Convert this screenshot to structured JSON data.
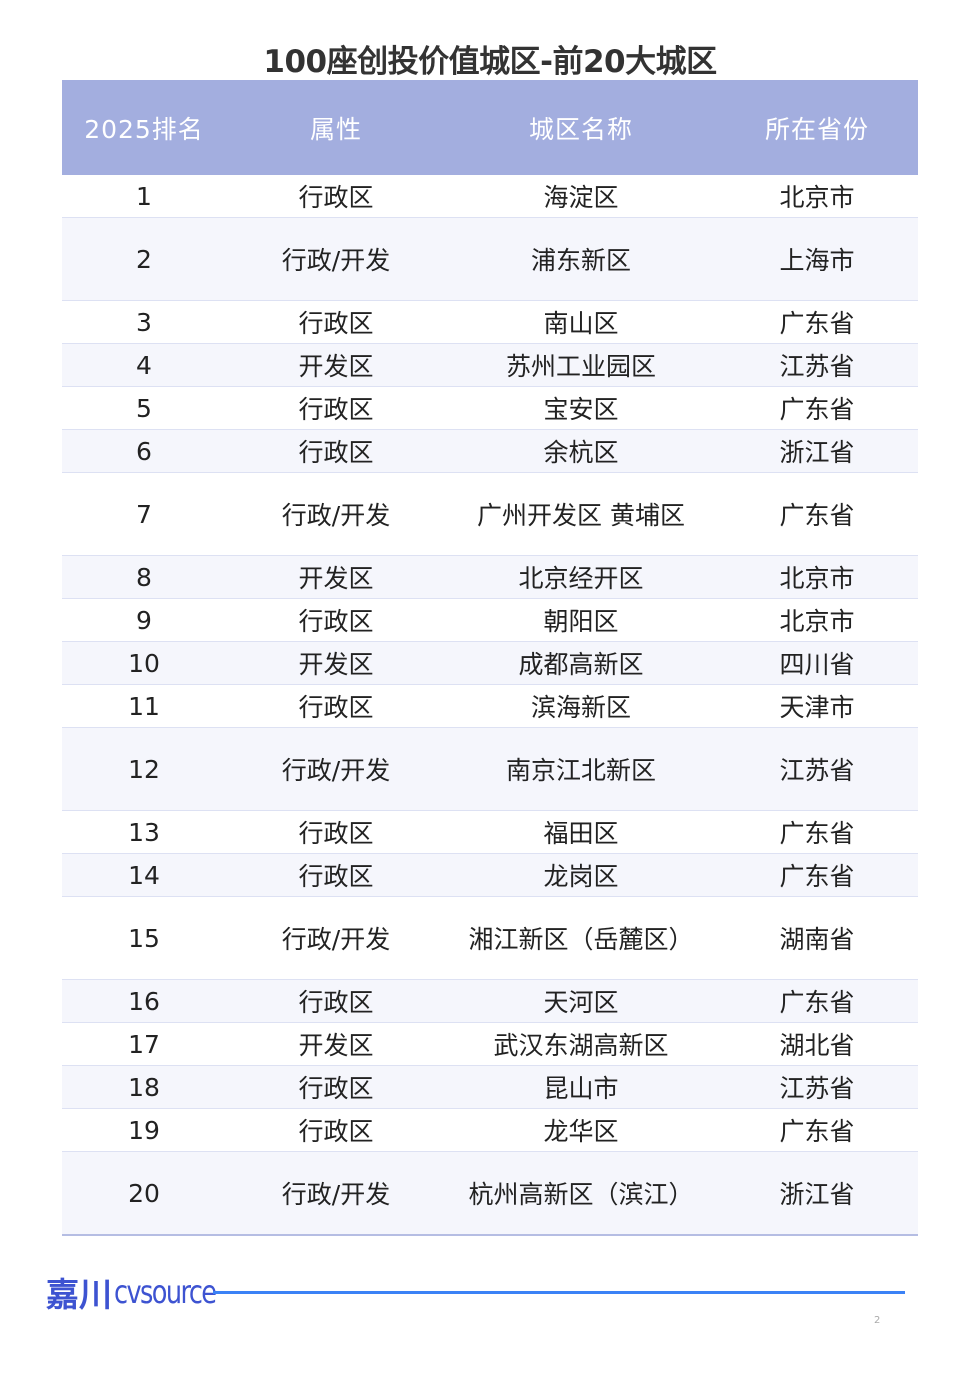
{
  "title": "100座创投价值城区-前20大城区",
  "headers": [
    "2025排名",
    "属性",
    "城区名称",
    "所在省份"
  ],
  "rows": [
    {
      "rank": "1",
      "type": "行政区",
      "name": "海淀区",
      "province": "北京市"
    },
    {
      "rank": "2",
      "type": "行政/开发",
      "name": "浦东新区",
      "province": "上海市"
    },
    {
      "rank": "3",
      "type": "行政区",
      "name": "南山区",
      "province": "广东省"
    },
    {
      "rank": "4",
      "type": "开发区",
      "name": "苏州工业园区",
      "province": "江苏省"
    },
    {
      "rank": "5",
      "type": "行政区",
      "name": "宝安区",
      "province": "广东省"
    },
    {
      "rank": "6",
      "type": "行政区",
      "name": "余杭区",
      "province": "浙江省"
    },
    {
      "rank": "7",
      "type": "行政/开发",
      "name": "广州开发区 黄埔区",
      "province": "广东省"
    },
    {
      "rank": "8",
      "type": "开发区",
      "name": "北京经开区",
      "province": "北京市"
    },
    {
      "rank": "9",
      "type": "行政区",
      "name": "朝阳区",
      "province": "北京市"
    },
    {
      "rank": "10",
      "type": "开发区",
      "name": "成都高新区",
      "province": "四川省"
    },
    {
      "rank": "11",
      "type": "行政区",
      "name": "滨海新区",
      "province": "天津市"
    },
    {
      "rank": "12",
      "type": "行政/开发",
      "name": "南京江北新区",
      "province": "江苏省"
    },
    {
      "rank": "13",
      "type": "行政区",
      "name": "福田区",
      "province": "广东省"
    },
    {
      "rank": "14",
      "type": "行政区",
      "name": "龙岗区",
      "province": "广东省"
    },
    {
      "rank": "15",
      "type": "行政/开发",
      "name": "湘江新区（岳麓区）",
      "province": "湖南省"
    },
    {
      "rank": "16",
      "type": "行政区",
      "name": "天河区",
      "province": "广东省"
    },
    {
      "rank": "17",
      "type": "开发区",
      "name": "武汉东湖高新区",
      "province": "湖北省"
    },
    {
      "rank": "18",
      "type": "行政区",
      "name": "昆山市",
      "province": "江苏省"
    },
    {
      "rank": "19",
      "type": "行政区",
      "name": "龙华区",
      "province": "广东省"
    },
    {
      "rank": "20",
      "type": "行政/开发",
      "name": "杭州高新区（滨江）",
      "province": "浙江省"
    }
  ],
  "footer": {
    "logo_mark": "川",
    "logo_cn": "嘉川",
    "logo_en": "cvsource",
    "page_number": "2"
  },
  "colors": {
    "header_bg": "#a3aedf",
    "alt_row_bg": "#f5f6fc",
    "accent": "#3b82f6",
    "logo": "#3d53d1"
  }
}
